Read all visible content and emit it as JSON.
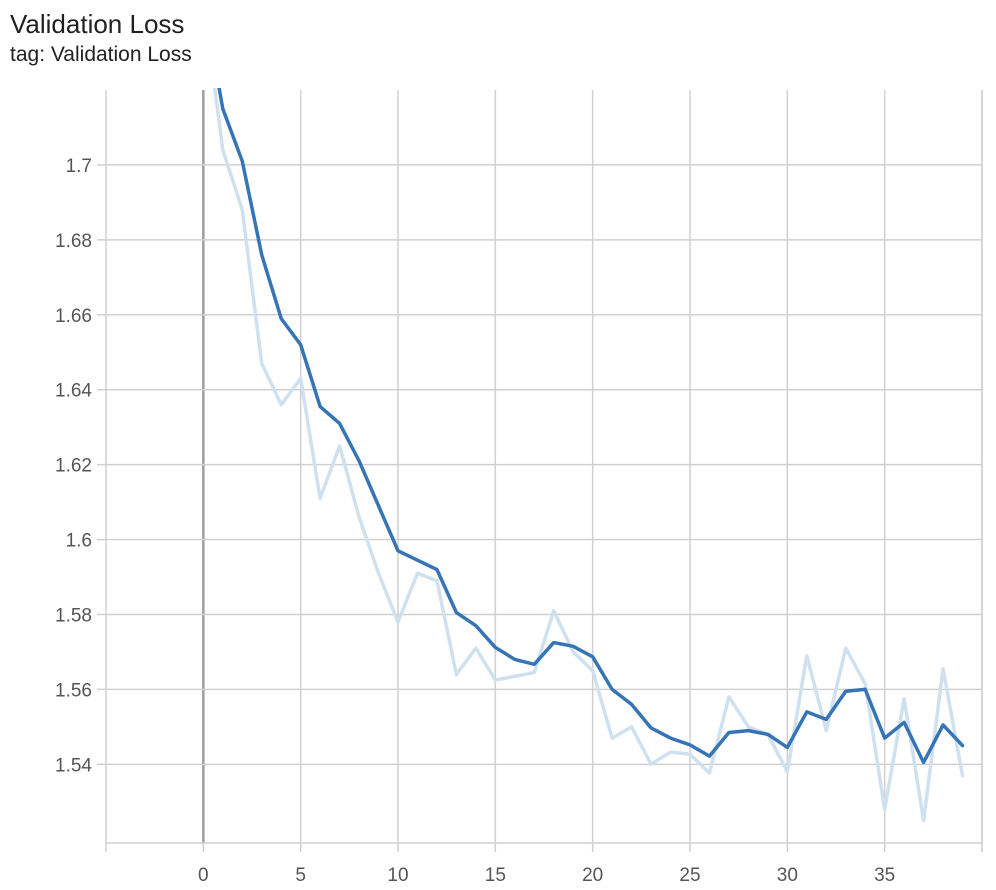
{
  "header": {
    "title": "Validation Loss",
    "subtitle": "tag: Validation Loss"
  },
  "chart_data": {
    "type": "line",
    "title": "Validation Loss",
    "subtitle": "tag: Validation Loss",
    "xlabel": "",
    "ylabel": "",
    "xlim": [
      -5,
      40
    ],
    "ylim": [
      1.519,
      1.72
    ],
    "x_ticks": [
      0,
      5,
      10,
      15,
      20,
      25,
      30,
      35
    ],
    "y_ticks": [
      1.54,
      1.56,
      1.58,
      1.6,
      1.62,
      1.64,
      1.66,
      1.68,
      1.7
    ],
    "y_tick_labels": [
      "1.54",
      "1.56",
      "1.58",
      "1.6",
      "1.62",
      "1.64",
      "1.66",
      "1.68",
      "1.7"
    ],
    "grid": true,
    "colors": {
      "smoothed": "#3574b5",
      "raw": "#cfe1ef",
      "grid": "#d0d0d0",
      "zero_line": "#9e9e9e"
    },
    "series": [
      {
        "role": "raw",
        "x": [
          0,
          1,
          2,
          3,
          4,
          5,
          6,
          7,
          8,
          9,
          10,
          11,
          12,
          13,
          14,
          15,
          16,
          17,
          18,
          19,
          20,
          21,
          22,
          23,
          24,
          25,
          26,
          27,
          28,
          29,
          30,
          31,
          32,
          33,
          34,
          35,
          36,
          37,
          38,
          39
        ],
        "values": [
          1.744,
          1.704,
          1.688,
          1.647,
          1.636,
          1.643,
          1.611,
          1.625,
          1.606,
          1.591,
          1.578,
          1.591,
          1.589,
          1.564,
          1.571,
          1.5625,
          1.5635,
          1.5645,
          1.581,
          1.57,
          1.565,
          1.547,
          1.55,
          1.54,
          1.5433,
          1.5427,
          1.5377,
          1.558,
          1.55,
          1.548,
          1.538,
          1.569,
          1.549,
          1.571,
          1.5615,
          1.528,
          1.5575,
          1.525,
          1.5655,
          1.537
        ]
      },
      {
        "role": "smoothed",
        "x": [
          0,
          1,
          2,
          3,
          4,
          5,
          6,
          7,
          8,
          9,
          10,
          11,
          12,
          13,
          14,
          15,
          16,
          17,
          18,
          19,
          20,
          21,
          22,
          23,
          24,
          25,
          26,
          27,
          28,
          29,
          30,
          31,
          32,
          33,
          34,
          35,
          36,
          37,
          38,
          39
        ],
        "values": [
          1.744,
          1.715,
          1.701,
          1.676,
          1.659,
          1.652,
          1.6355,
          1.631,
          1.621,
          1.609,
          1.597,
          1.5945,
          1.592,
          1.5805,
          1.577,
          1.5712,
          1.568,
          1.5667,
          1.5725,
          1.5715,
          1.5687,
          1.56,
          1.556,
          1.5497,
          1.547,
          1.5452,
          1.5422,
          1.5485,
          1.549,
          1.548,
          1.5445,
          1.554,
          1.552,
          1.5595,
          1.56,
          1.547,
          1.5512,
          1.5405,
          1.5505,
          1.545
        ]
      }
    ]
  }
}
